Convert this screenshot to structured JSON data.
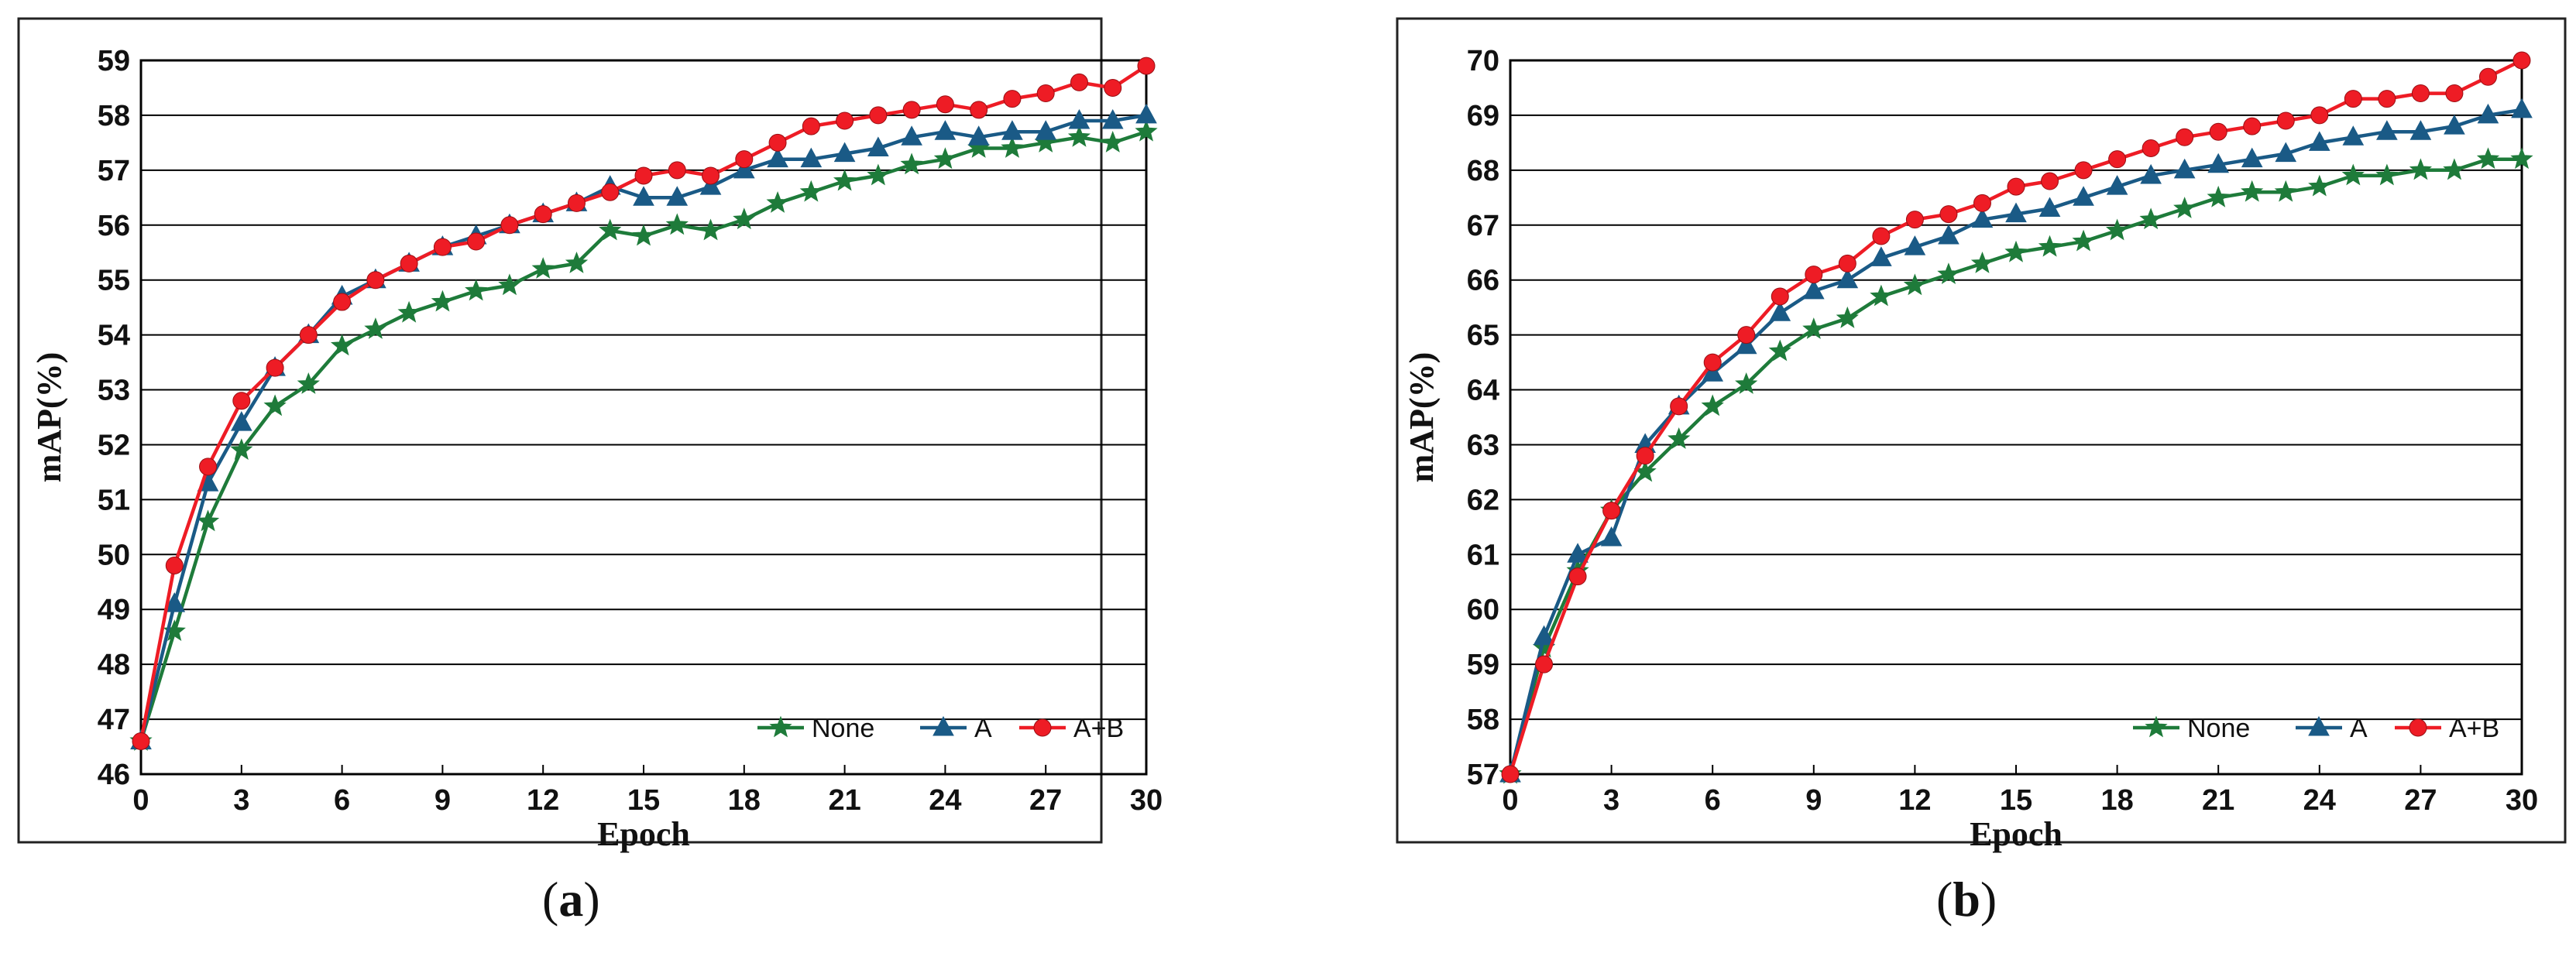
{
  "captions": [
    {
      "open": "(",
      "letter": "a",
      "close": ")"
    },
    {
      "open": "(",
      "letter": "b",
      "close": ")"
    }
  ],
  "colors": {
    "None": "#1e7b3a",
    "A": "#1a5a86",
    "A+B": "#ee1c25"
  },
  "chart_data": [
    {
      "type": "line",
      "xlabel": "Epoch",
      "ylabel": "mAP(%)",
      "xlim": [
        0,
        30
      ],
      "ylim": [
        46,
        59
      ],
      "xticks": [
        0,
        3,
        6,
        9,
        12,
        15,
        18,
        21,
        24,
        27,
        30
      ],
      "yticks": [
        46,
        47,
        48,
        49,
        50,
        51,
        52,
        53,
        54,
        55,
        56,
        57,
        58,
        59
      ],
      "grid": "horizontal",
      "legend": "bottom-right",
      "x": [
        0,
        1,
        2,
        3,
        4,
        5,
        6,
        7,
        8,
        9,
        10,
        11,
        12,
        13,
        14,
        15,
        16,
        17,
        18,
        19,
        20,
        21,
        22,
        23,
        24,
        25,
        26,
        27,
        28,
        29,
        30
      ],
      "series": [
        {
          "name": "None",
          "marker": "star",
          "values": [
            46.6,
            48.6,
            50.6,
            51.9,
            52.7,
            53.1,
            53.8,
            54.1,
            54.4,
            54.6,
            54.8,
            54.9,
            55.2,
            55.3,
            55.9,
            55.8,
            56.0,
            55.9,
            56.1,
            56.4,
            56.6,
            56.8,
            56.9,
            57.1,
            57.2,
            57.4,
            57.4,
            57.5,
            57.6,
            57.5,
            57.7
          ]
        },
        {
          "name": "A",
          "marker": "triangle",
          "values": [
            46.6,
            49.1,
            51.3,
            52.4,
            53.4,
            54.0,
            54.7,
            55.0,
            55.3,
            55.6,
            55.8,
            56.0,
            56.2,
            56.4,
            56.7,
            56.5,
            56.5,
            56.7,
            57.0,
            57.2,
            57.2,
            57.3,
            57.4,
            57.6,
            57.7,
            57.6,
            57.7,
            57.7,
            57.9,
            57.9,
            58.0
          ]
        },
        {
          "name": "A+B",
          "marker": "circle",
          "values": [
            46.6,
            49.8,
            51.6,
            52.8,
            53.4,
            54.0,
            54.6,
            55.0,
            55.3,
            55.6,
            55.7,
            56.0,
            56.2,
            56.4,
            56.6,
            56.9,
            57.0,
            56.9,
            57.2,
            57.5,
            57.8,
            57.9,
            58.0,
            58.1,
            58.2,
            58.1,
            58.3,
            58.4,
            58.6,
            58.5,
            58.9
          ]
        }
      ]
    },
    {
      "type": "line",
      "xlabel": "Epoch",
      "ylabel": "mAP(%)",
      "xlim": [
        0,
        30
      ],
      "ylim": [
        57,
        70
      ],
      "xticks": [
        0,
        3,
        6,
        9,
        12,
        15,
        18,
        21,
        24,
        27,
        30
      ],
      "yticks": [
        57,
        58,
        59,
        60,
        61,
        62,
        63,
        64,
        65,
        66,
        67,
        68,
        69,
        70
      ],
      "grid": "horizontal",
      "legend": "bottom-right",
      "x": [
        0,
        1,
        2,
        3,
        4,
        5,
        6,
        7,
        8,
        9,
        10,
        11,
        12,
        13,
        14,
        15,
        16,
        17,
        18,
        19,
        20,
        21,
        22,
        23,
        24,
        25,
        26,
        27,
        28,
        29,
        30
      ],
      "series": [
        {
          "name": "None",
          "marker": "star",
          "values": [
            57.0,
            59.3,
            60.7,
            61.8,
            62.5,
            63.1,
            63.7,
            64.1,
            64.7,
            65.1,
            65.3,
            65.7,
            65.9,
            66.1,
            66.3,
            66.5,
            66.6,
            66.7,
            66.9,
            67.1,
            67.3,
            67.5,
            67.6,
            67.6,
            67.7,
            67.9,
            67.9,
            68.0,
            68.0,
            68.2,
            68.2
          ]
        },
        {
          "name": "A",
          "marker": "triangle",
          "values": [
            57.0,
            59.5,
            61.0,
            61.3,
            63.0,
            63.7,
            64.3,
            64.8,
            65.4,
            65.8,
            66.0,
            66.4,
            66.6,
            66.8,
            67.1,
            67.2,
            67.3,
            67.5,
            67.7,
            67.9,
            68.0,
            68.1,
            68.2,
            68.3,
            68.5,
            68.6,
            68.7,
            68.7,
            68.8,
            69.0,
            69.1
          ]
        },
        {
          "name": "A+B",
          "marker": "circle",
          "values": [
            57.0,
            59.0,
            60.6,
            61.8,
            62.8,
            63.7,
            64.5,
            65.0,
            65.7,
            66.1,
            66.3,
            66.8,
            67.1,
            67.2,
            67.4,
            67.7,
            67.8,
            68.0,
            68.2,
            68.4,
            68.6,
            68.7,
            68.8,
            68.9,
            69.0,
            69.3,
            69.3,
            69.4,
            69.4,
            69.7,
            70.0
          ]
        }
      ]
    }
  ]
}
